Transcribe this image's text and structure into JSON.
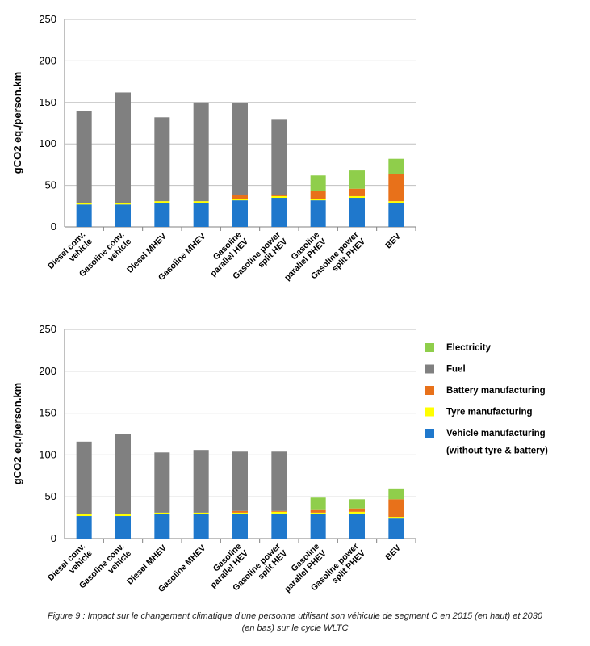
{
  "colors": {
    "Electricity": "#8fce4b",
    "Fuel": "#808080",
    "Battery manufacturing": "#e8711a",
    "Tyre manufacturing": "#ffff00",
    "Vehicle manufacturing": "#1f78cc",
    "grid": "#bfbfbf",
    "axis": "#808080"
  },
  "legend": {
    "items": [
      {
        "key": "Electricity",
        "label": "Electricity"
      },
      {
        "key": "Fuel",
        "label": "Fuel"
      },
      {
        "key": "Battery manufacturing",
        "label": "Battery manufacturing"
      },
      {
        "key": "Tyre manufacturing",
        "label": "Tyre manufacturing"
      },
      {
        "key": "Vehicle manufacturing",
        "label": "Vehicle manufacturing"
      }
    ],
    "extra_line": "(without tyre & battery)"
  },
  "caption": {
    "line1": "Figure 9 : Impact sur le changement climatique d'une personne utilisant son véhicule de segment C en 2015 (en haut) et 2030",
    "line2": "(en bas) sur le cycle WLTC"
  },
  "chart_data": [
    {
      "type": "bar",
      "stacked": true,
      "title": "",
      "ylabel": "gCO2 eq./person.km",
      "xlabel": "",
      "ylim": [
        0,
        250
      ],
      "yticks": [
        0,
        50,
        100,
        150,
        200,
        250
      ],
      "grid": true,
      "categories": [
        [
          "Diesel conv.",
          "vehicle"
        ],
        [
          "Gasoline conv.",
          "vehicle"
        ],
        [
          "Diesel MHEV"
        ],
        [
          "Gasoline MHEV"
        ],
        [
          "Gasoline",
          "parallel HEV"
        ],
        [
          "Gasoline power",
          "split HEV"
        ],
        [
          "Gasoline",
          "parallel PHEV"
        ],
        [
          "Gasoline power",
          "split PHEV"
        ],
        [
          "BEV"
        ]
      ],
      "series": [
        {
          "name": "Vehicle manufacturing",
          "values": [
            27,
            27,
            29,
            29,
            32,
            35,
            32,
            35,
            29
          ]
        },
        {
          "name": "Tyre manufacturing",
          "values": [
            2,
            2,
            2,
            2,
            2,
            2,
            2,
            2,
            2
          ]
        },
        {
          "name": "Battery manufacturing",
          "values": [
            0,
            0,
            0,
            0,
            4,
            1,
            9,
            9,
            33
          ]
        },
        {
          "name": "Fuel",
          "values": [
            111,
            133,
            101,
            119,
            111,
            92,
            0,
            0,
            0
          ]
        },
        {
          "name": "Electricity",
          "values": [
            0,
            0,
            0,
            0,
            0,
            0,
            19,
            22,
            18
          ]
        }
      ]
    },
    {
      "type": "bar",
      "stacked": true,
      "title": "",
      "ylabel": "gCO2 eq./person.km",
      "xlabel": "",
      "ylim": [
        0,
        250
      ],
      "yticks": [
        0,
        50,
        100,
        150,
        200,
        250
      ],
      "grid": true,
      "categories": [
        [
          "Diesel conv.",
          "vehicle"
        ],
        [
          "Gasoline conv.",
          "vehicle"
        ],
        [
          "Diesel MHEV"
        ],
        [
          "Gasoline MHEV"
        ],
        [
          "Gasoline",
          "parallel HEV"
        ],
        [
          "Gasoline power",
          "split HEV"
        ],
        [
          "Gasoline",
          "parallel PHEV"
        ],
        [
          "Gasoline power",
          "split PHEV"
        ],
        [
          "BEV"
        ]
      ],
      "series": [
        {
          "name": "Vehicle manufacturing",
          "values": [
            27,
            27,
            29,
            29,
            29,
            30,
            29,
            30,
            24
          ]
        },
        {
          "name": "Tyre manufacturing",
          "values": [
            2,
            2,
            2,
            2,
            2,
            2,
            2,
            2,
            2
          ]
        },
        {
          "name": "Battery manufacturing",
          "values": [
            0,
            0,
            0,
            0,
            2,
            1,
            4,
            4,
            21
          ]
        },
        {
          "name": "Fuel",
          "values": [
            87,
            96,
            72,
            75,
            71,
            71,
            0,
            0,
            0
          ]
        },
        {
          "name": "Electricity",
          "values": [
            0,
            0,
            0,
            0,
            0,
            0,
            14,
            11,
            13
          ]
        }
      ]
    }
  ]
}
